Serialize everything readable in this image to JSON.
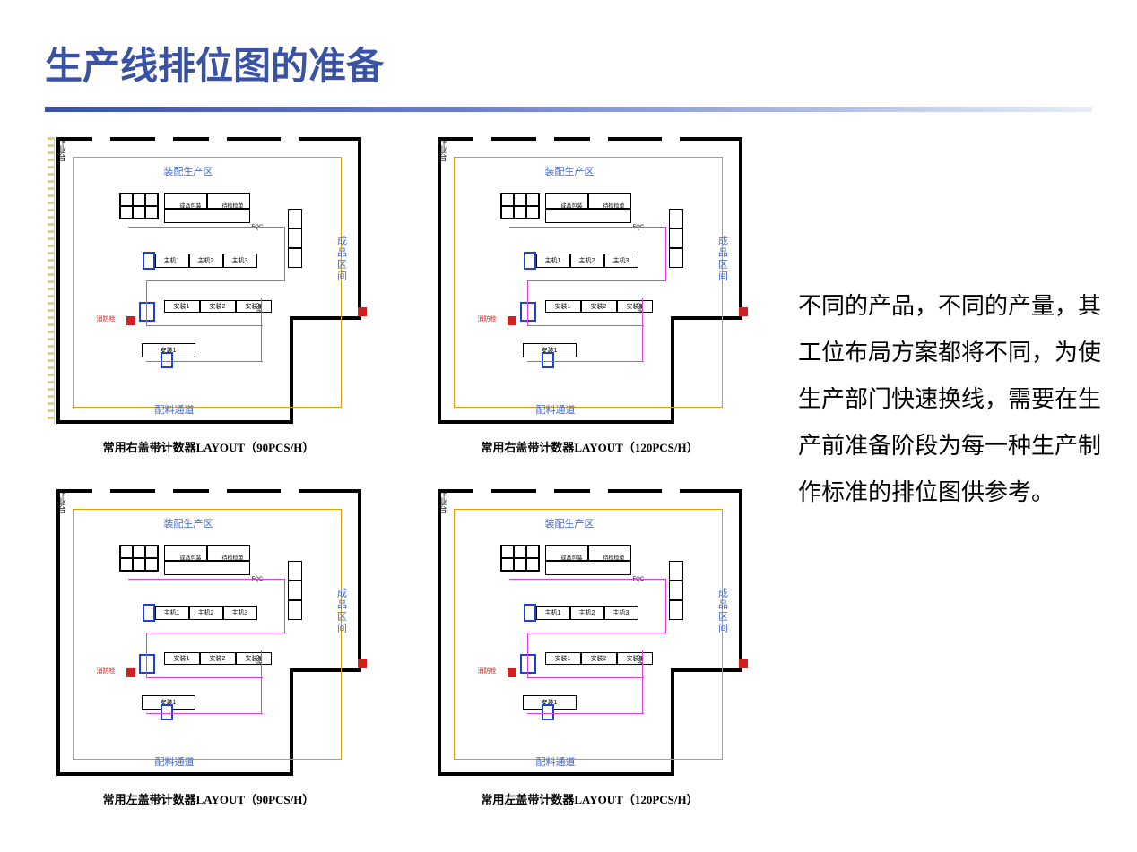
{
  "title": "生产线排位图的准备",
  "side_paragraph": "不同的产品，不同的产量，其工位布局方案都将不同，为使生产部门快速换线，需要在生产前准备阶段为每一种生产制作标准的排位图供参考。",
  "diagrams": [
    {
      "caption": "常用右盖带计数器LAYOUT（90PCS/H）",
      "has_ruler": true
    },
    {
      "caption": "常用右盖带计数器LAYOUT（120PCS/H）",
      "has_ruler": false
    },
    {
      "caption": "常用左盖带计数器LAYOUT（90PCS/H）",
      "has_ruler": false
    },
    {
      "caption": "常用左盖带计数器LAYOUT（120PCS/H）",
      "has_ruler": false
    }
  ],
  "floorplan": {
    "area_top_label": "装配生产区",
    "area_bottom_label": "配料通道",
    "area_right_label": "成品区间",
    "side_label": "作业台",
    "fqc_label": "FQC",
    "station_label_1": "成品包装",
    "station_label_2": "待检检单",
    "fire_label": "消防栓",
    "mid_labels": [
      "主机1",
      "主机2",
      "主机3"
    ],
    "mid2_labels": [
      "安装1",
      "安装2",
      "安装3"
    ],
    "bot_labels": [
      "安装1"
    ],
    "vnum_label": "A06"
  },
  "colors": {
    "title": "#3952a4",
    "label_blue": "#4169c8",
    "flow": "#e040e0",
    "red": "#d02020",
    "blue_box": "#2040d0",
    "inner_border": "#e0a000"
  }
}
